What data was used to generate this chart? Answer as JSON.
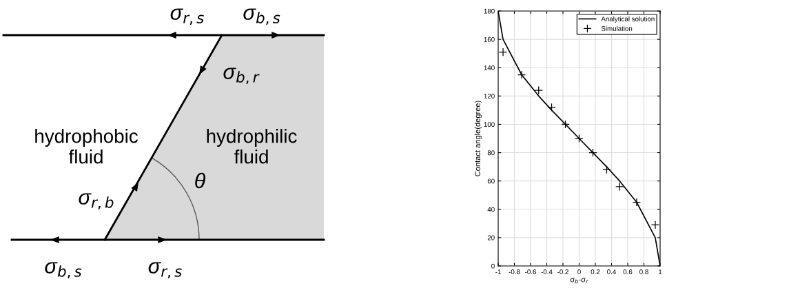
{
  "chart_data": [
    {
      "type": "other",
      "annotations": [
        "σ$_{r,s}$",
        "σ$_{b,s}$",
        "σ$_{b,r}$",
        "hydrophobic\nfluid",
        "hydrophilic\nfluid",
        "θ",
        "σ$_{r,b}$",
        "σ$_{b,s}$",
        "σ$_{r,s}$"
      ]
    },
    {
      "type": "line",
      "xlabel": "σ$_{b}$-σ$_{r}$",
      "ylabel": "Contact angle(degree)",
      "xlim": [
        -1,
        1
      ],
      "xticks": [
        -1,
        -0.8,
        -0.6,
        -0.4,
        -0.2,
        0,
        0.2,
        0.4,
        0.6,
        0.8,
        1
      ],
      "ylim": [
        0,
        180
      ],
      "yticks": [
        0,
        20,
        40,
        60,
        80,
        100,
        120,
        140,
        160,
        180
      ],
      "grid": true,
      "legend": "top right",
      "series": [
        {
          "name": "Analytical solution",
          "type": "line",
          "color": "#000000",
          "marker": "none",
          "line_style": "solid",
          "x": [
            -1,
            -0.94,
            -0.71,
            -0.5,
            -0.34,
            -0.17,
            0,
            0.17,
            0.34,
            0.5,
            0.71,
            0.94,
            1
          ],
          "values": [
            180,
            160,
            135,
            120,
            110,
            100,
            90,
            80,
            70,
            60,
            45,
            20,
            0
          ]
        },
        {
          "name": "Simulation",
          "type": "scatter",
          "color": "#000000",
          "marker": "cross",
          "x": [
            -0.94,
            -0.71,
            -0.5,
            -0.34,
            -0.17,
            0,
            0.17,
            0.34,
            0.5,
            0.71,
            0.94
          ],
          "values": [
            151,
            135,
            124,
            112,
            100,
            90,
            80,
            68,
            56,
            45,
            29
          ]
        }
      ]
    }
  ]
}
